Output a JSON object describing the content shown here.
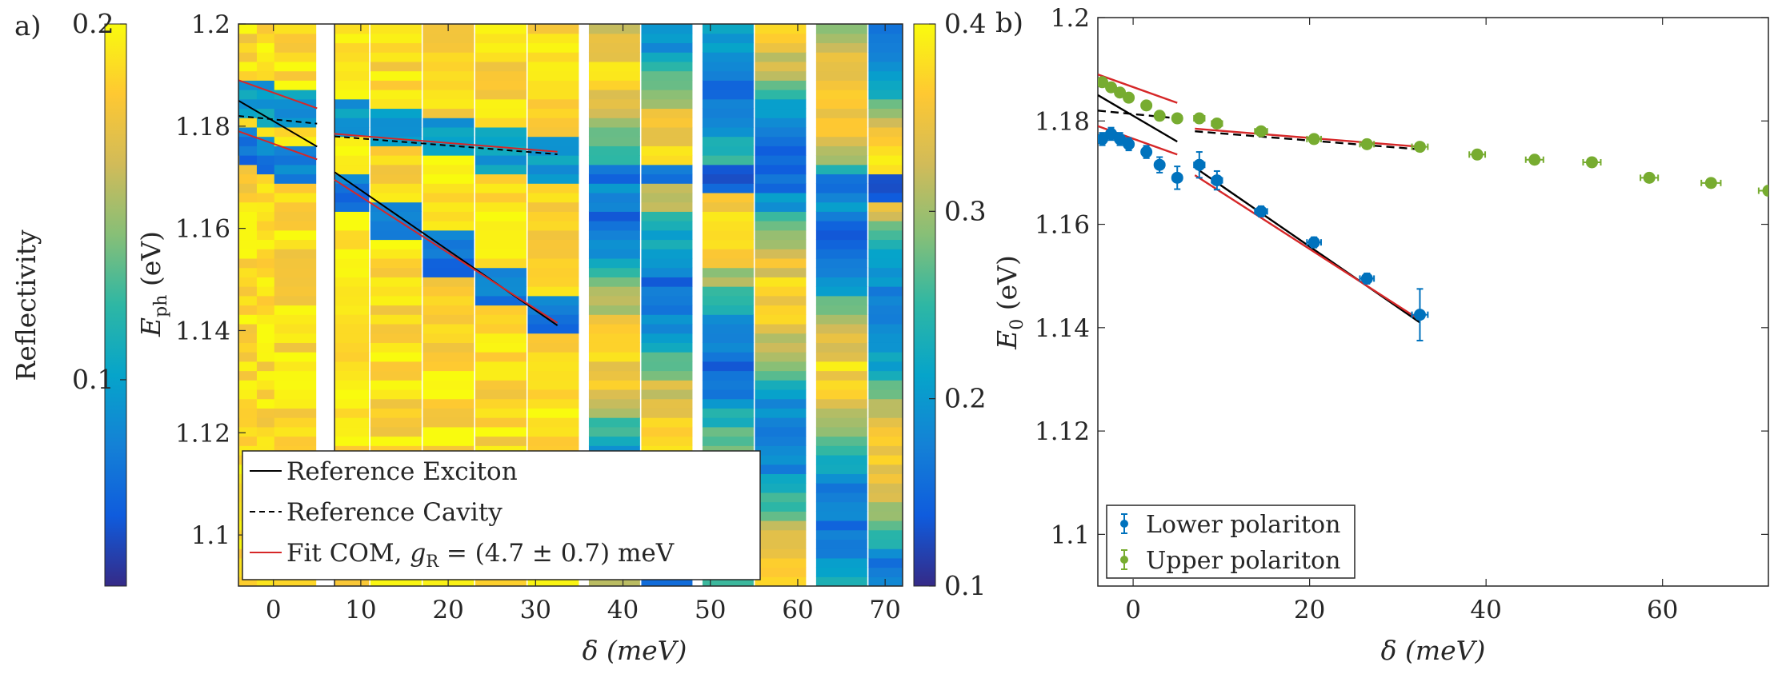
{
  "panel_labels": {
    "a": "a)",
    "b": "b)"
  },
  "colors": {
    "lower_polariton": "#0072BD",
    "upper_polariton": "#77AC30",
    "fit": "#D62728",
    "reference": "#000000",
    "axis": "#262626",
    "parula": [
      "#352A87",
      "#0F5CDD",
      "#1481D6",
      "#06A4CA",
      "#2EB7A4",
      "#87BF77",
      "#D1BB59",
      "#FEC832",
      "#F9FB0E"
    ]
  },
  "chart_data": [
    {
      "id": "reflectivity-colorbar",
      "type": "colorbar",
      "label": "Reflectivity",
      "range": [
        0.042,
        0.2
      ],
      "ticks": [
        "0.1",
        "0.2"
      ],
      "tick_values": [
        0.1,
        0.2
      ]
    },
    {
      "id": "panel-a-spectra",
      "type": "heatmap",
      "xlabel": "δ (meV)",
      "ylabel_main": "E",
      "ylabel_sub": "ph",
      "ylabel_unit": " (eV)",
      "xlim": [
        -4,
        72
      ],
      "ylim": [
        1.09,
        1.2
      ],
      "xticks": [
        "0",
        "10",
        "20",
        "30",
        "40",
        "50",
        "60",
        "70"
      ],
      "xtick_values": [
        0,
        10,
        20,
        30,
        40,
        50,
        60,
        70
      ],
      "yticks": [
        "1.1",
        "1.12",
        "1.14",
        "1.16",
        "1.18",
        "1.2"
      ],
      "ytick_values": [
        1.1,
        1.12,
        1.14,
        1.16,
        1.18,
        1.2
      ],
      "columns": [
        -3,
        -1,
        1,
        3,
        8,
        14,
        20,
        26,
        32,
        39,
        45,
        52,
        58,
        65,
        71
      ],
      "lines": {
        "exciton_segments": [
          [
            [
              -4,
              1.185
            ],
            [
              5,
              1.176
            ]
          ],
          [
            [
              7,
              1.171
            ],
            [
              32.5,
              1.141
            ]
          ]
        ],
        "cavity_segments": [
          [
            [
              -4,
              1.182
            ],
            [
              5,
              1.1805
            ]
          ],
          [
            [
              7,
              1.178
            ],
            [
              32.5,
              1.1745
            ]
          ]
        ],
        "fit_upper_segments": [
          [
            [
              -4,
              1.189
            ],
            [
              5,
              1.1835
            ]
          ],
          [
            [
              7,
              1.1785
            ],
            [
              32.5,
              1.175
            ]
          ]
        ],
        "fit_lower_segments": [
          [
            [
              -4,
              1.179
            ],
            [
              5,
              1.1735
            ]
          ],
          [
            [
              7,
              1.1695
            ],
            [
              32.5,
              1.1415
            ]
          ]
        ]
      },
      "legend": {
        "position": "lower-left",
        "entries": [
          {
            "label": "Reference Exciton",
            "style": "solid-black"
          },
          {
            "label": "Reference Cavity",
            "style": "dashed-black"
          },
          {
            "label_prefix": "Fit COM, ",
            "label_var": "g",
            "label_sub": "R",
            "label_suffix": " = (4.7 ± 0.7) meV",
            "style": "solid-red"
          }
        ]
      }
    },
    {
      "id": "panel-a-colorbar",
      "type": "colorbar",
      "label": "",
      "range": [
        0.1,
        0.4
      ],
      "ticks": [
        "0.1",
        "0.2",
        "0.3",
        "0.4"
      ],
      "tick_values": [
        0.1,
        0.2,
        0.3,
        0.4
      ]
    },
    {
      "id": "panel-b-energies",
      "type": "scatter",
      "xlabel": "δ (meV)",
      "ylabel_main": "E",
      "ylabel_sub": "0",
      "ylabel_unit": " (eV)",
      "xlim": [
        -4,
        72
      ],
      "ylim": [
        1.09,
        1.2
      ],
      "xticks": [
        "0",
        "20",
        "40",
        "60"
      ],
      "xtick_values": [
        0,
        20,
        40,
        60
      ],
      "yticks": [
        "1.1",
        "1.12",
        "1.14",
        "1.16",
        "1.18",
        "1.2"
      ],
      "ytick_values": [
        1.1,
        1.12,
        1.14,
        1.16,
        1.18,
        1.2
      ],
      "series": [
        {
          "name": "Lower polariton",
          "x": [
            -3.5,
            -2.5,
            -1.5,
            -0.5,
            1.5,
            3,
            5,
            7.5,
            9.5,
            14.5,
            20.5,
            26.5,
            32.5
          ],
          "y": [
            1.1765,
            1.1775,
            1.1765,
            1.1755,
            1.174,
            1.1715,
            1.169,
            1.1715,
            1.1685,
            1.1625,
            1.1565,
            1.1495,
            1.1425
          ],
          "yerr": [
            0.0012,
            0.0012,
            0.0012,
            0.0012,
            0.0012,
            0.0015,
            0.0022,
            0.0025,
            0.0018,
            0.001,
            0.001,
            0.001,
            0.005
          ],
          "xerr": [
            0.3,
            0.3,
            0.3,
            0.3,
            0.3,
            0.4,
            0.5,
            0.6,
            0.6,
            0.7,
            0.8,
            0.8,
            0.9
          ]
        },
        {
          "name": "Upper polariton",
          "x": [
            -3.5,
            -2.5,
            -1.5,
            -0.5,
            1.5,
            3,
            5,
            7.5,
            9.5,
            14.5,
            20.5,
            26.5,
            32.5,
            39,
            45.5,
            52,
            58.5,
            65.5,
            72
          ],
          "y": [
            1.1875,
            1.1865,
            1.1855,
            1.1845,
            1.183,
            1.181,
            1.1805,
            1.1805,
            1.1795,
            1.178,
            1.1765,
            1.1755,
            1.175,
            1.1735,
            1.1725,
            1.172,
            1.169,
            1.168,
            1.1665
          ],
          "yerr": [
            0.0008,
            0.0008,
            0.0008,
            0.0008,
            0.0008,
            0.0008,
            0.0008,
            0.0008,
            0.0008,
            0.0008,
            0.0008,
            0.0008,
            0.0008,
            0.0008,
            0.0008,
            0.0008,
            0.0008,
            0.0008,
            0.0008
          ],
          "xerr": [
            0.3,
            0.3,
            0.3,
            0.3,
            0.3,
            0.4,
            0.5,
            0.6,
            0.6,
            0.7,
            0.8,
            0.8,
            0.9,
            0.9,
            1.0,
            1.0,
            1.0,
            1.1,
            1.1
          ]
        }
      ],
      "lines": {
        "exciton_segments": [
          [
            [
              -4,
              1.185
            ],
            [
              5,
              1.176
            ]
          ],
          [
            [
              7,
              1.171
            ],
            [
              32.5,
              1.141
            ]
          ]
        ],
        "cavity_segments": [
          [
            [
              -4,
              1.182
            ],
            [
              5,
              1.1805
            ]
          ],
          [
            [
              7,
              1.178
            ],
            [
              32.5,
              1.1745
            ]
          ]
        ],
        "fit_upper_segments": [
          [
            [
              -4,
              1.189
            ],
            [
              5,
              1.1835
            ]
          ],
          [
            [
              7,
              1.1785
            ],
            [
              32.5,
              1.175
            ]
          ]
        ],
        "fit_lower_segments": [
          [
            [
              -4,
              1.179
            ],
            [
              5,
              1.1735
            ]
          ],
          [
            [
              7,
              1.1695
            ],
            [
              32.5,
              1.1415
            ]
          ]
        ]
      },
      "legend": {
        "position": "lower-left",
        "entries": [
          {
            "label": "Lower polariton"
          },
          {
            "label": "Upper polariton"
          }
        ]
      }
    }
  ]
}
